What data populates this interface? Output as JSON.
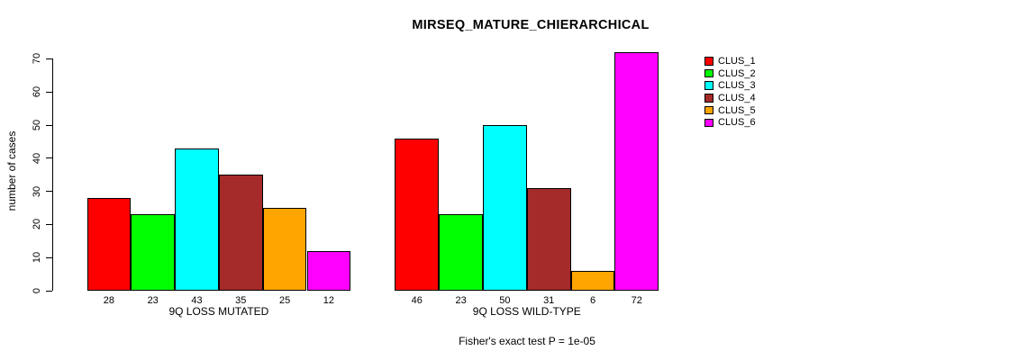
{
  "chart_data": {
    "type": "bar",
    "title": "MIRSEQ_MATURE_CHIERARCHICAL",
    "ylabel": "number of cases",
    "subtitle": "Fisher's exact test P = 1e-05",
    "ylim": [
      0,
      70
    ],
    "yticks": [
      0,
      10,
      20,
      30,
      40,
      50,
      60,
      70
    ],
    "grid": false,
    "legend_position": "top-right-inside",
    "bar_value_labels": true,
    "categories": [
      "9Q LOSS MUTATED",
      "9Q LOSS WILD-TYPE"
    ],
    "series": [
      {
        "name": "CLUS_1",
        "color": "#FF0000",
        "values": [
          28,
          46
        ]
      },
      {
        "name": "CLUS_2",
        "color": "#00FF00",
        "values": [
          23,
          23
        ]
      },
      {
        "name": "CLUS_3",
        "color": "#00FFFF",
        "values": [
          43,
          50
        ]
      },
      {
        "name": "CLUS_4",
        "color": "#A52A2A",
        "values": [
          35,
          31
        ]
      },
      {
        "name": "CLUS_5",
        "color": "#FFA500",
        "values": [
          25,
          6
        ]
      },
      {
        "name": "CLUS_6",
        "color": "#FF00FF",
        "values": [
          12,
          72
        ]
      }
    ]
  }
}
